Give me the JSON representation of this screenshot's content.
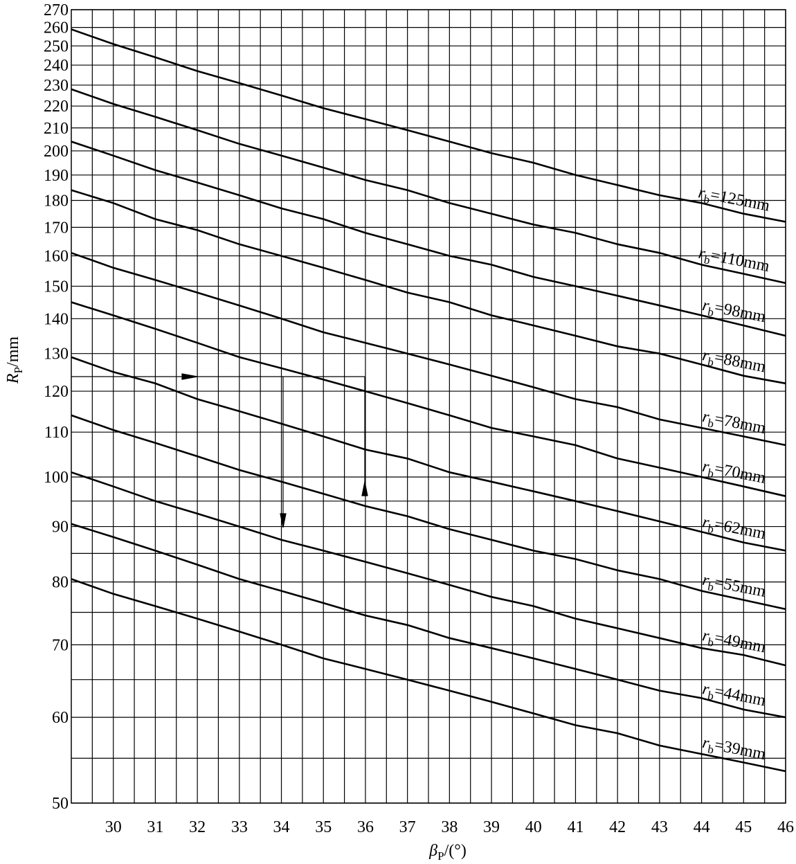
{
  "chart_data": {
    "type": "line",
    "x_label": "βP/(°)",
    "y_label": "RP/mm",
    "x": [
      29,
      30,
      31,
      32,
      33,
      34,
      35,
      36,
      37,
      38,
      39,
      40,
      41,
      42,
      43,
      44,
      45,
      46
    ],
    "series": [
      {
        "name": "rb=125mm",
        "color": "#000000",
        "values": [
          259,
          251,
          244,
          237,
          231,
          225,
          219,
          214,
          209,
          204,
          199,
          195,
          190,
          186,
          182,
          179,
          175,
          172
        ]
      },
      {
        "name": "rb=110mm",
        "color": "#000000",
        "values": [
          228,
          221,
          215,
          209,
          203,
          198,
          193,
          188,
          184,
          179,
          175,
          171,
          168,
          164,
          161,
          157,
          154,
          151
        ]
      },
      {
        "name": "rb=98mm",
        "color": "#000000",
        "values": [
          204,
          198,
          192,
          187,
          182,
          177,
          173,
          168,
          164,
          160,
          157,
          153,
          150,
          147,
          144,
          141,
          138,
          135
        ]
      },
      {
        "name": "rb=88mm",
        "color": "#000000",
        "values": [
          184,
          179,
          173,
          169,
          164,
          160,
          156,
          152,
          148,
          145,
          141,
          138,
          135,
          132,
          130,
          127,
          124,
          122
        ]
      },
      {
        "name": "rb=78mm",
        "color": "#000000",
        "values": [
          161,
          156,
          152,
          148,
          144,
          140,
          136,
          133,
          130,
          127,
          124,
          121,
          118,
          116,
          113,
          111,
          109,
          107
        ]
      },
      {
        "name": "rb=70mm",
        "color": "#000000",
        "values": [
          145,
          141,
          137,
          133,
          129,
          126,
          123,
          120,
          117,
          114,
          111,
          109,
          107,
          104,
          102,
          100,
          98,
          96
        ]
      },
      {
        "name": "rb=62mm",
        "color": "#000000",
        "values": [
          129,
          125,
          122,
          118,
          115,
          112,
          109,
          106,
          104,
          101,
          99,
          97,
          95,
          93,
          91,
          89,
          87,
          85.5
        ]
      },
      {
        "name": "rb=55mm",
        "color": "#000000",
        "values": [
          114,
          110.5,
          107.5,
          104.5,
          101.5,
          99,
          96.5,
          94,
          92,
          89.5,
          87.5,
          85.5,
          84,
          82,
          80.5,
          78.5,
          77,
          75.5
        ]
      },
      {
        "name": "rb=49mm",
        "color": "#000000",
        "values": [
          101,
          98,
          95,
          92.5,
          90,
          87.5,
          85.5,
          83.5,
          81.5,
          79.5,
          77.5,
          76,
          74,
          72.5,
          71,
          69.5,
          68.5,
          67
        ]
      },
      {
        "name": "rb=44mm",
        "color": "#000000",
        "values": [
          90.5,
          88,
          85.5,
          83,
          80.5,
          78.5,
          76.5,
          74.5,
          73,
          71,
          69.5,
          68,
          66.5,
          65,
          63.5,
          62.5,
          61,
          60
        ]
      },
      {
        "name": "rb=39mm",
        "color": "#000000",
        "values": [
          80.5,
          78,
          76,
          74,
          72,
          70,
          68,
          66.5,
          65,
          63.5,
          62,
          60.5,
          59,
          58,
          56.5,
          55.5,
          54.5,
          53.5
        ]
      }
    ],
    "xlim": [
      29,
      46
    ],
    "ylim": [
      50,
      270
    ],
    "y_scale": "log",
    "xticks": [
      30,
      31,
      32,
      33,
      34,
      35,
      36,
      37,
      38,
      39,
      40,
      41,
      42,
      43,
      44,
      45,
      46
    ],
    "yticks": [
      50,
      60,
      70,
      80,
      90,
      100,
      110,
      120,
      130,
      140,
      150,
      160,
      170,
      180,
      190,
      200,
      210,
      220,
      230,
      240,
      250,
      260,
      270
    ],
    "xgrid_minor": [
      29.5,
      30.5,
      31.5,
      32.5,
      33.5,
      34.5,
      35.5,
      36.5,
      37.5,
      38.5,
      39.5,
      40.5,
      41.5,
      42.5,
      43.5,
      44.5,
      45.5
    ],
    "ygrid_minor": [
      55,
      65,
      75,
      85,
      95
    ],
    "grid": true
  }
}
